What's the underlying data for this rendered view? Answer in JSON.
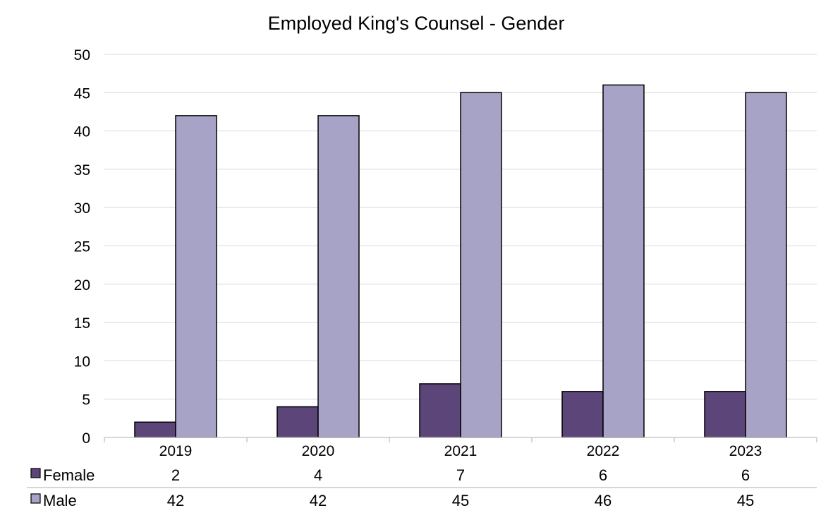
{
  "chart_data": {
    "type": "bar",
    "title": "Employed King's Counsel - Gender",
    "categories": [
      "2019",
      "2020",
      "2021",
      "2022",
      "2023"
    ],
    "series": [
      {
        "name": "Female",
        "values": [
          2,
          4,
          7,
          6,
          6
        ],
        "color": "#5c4579"
      },
      {
        "name": "Male",
        "values": [
          42,
          42,
          45,
          46,
          45
        ],
        "color": "#a7a3c6"
      }
    ],
    "ylim": [
      0,
      50
    ],
    "yticks": [
      0,
      5,
      10,
      15,
      20,
      25,
      30,
      35,
      40,
      45,
      50
    ],
    "grid": true,
    "legend": "data-table-below"
  }
}
